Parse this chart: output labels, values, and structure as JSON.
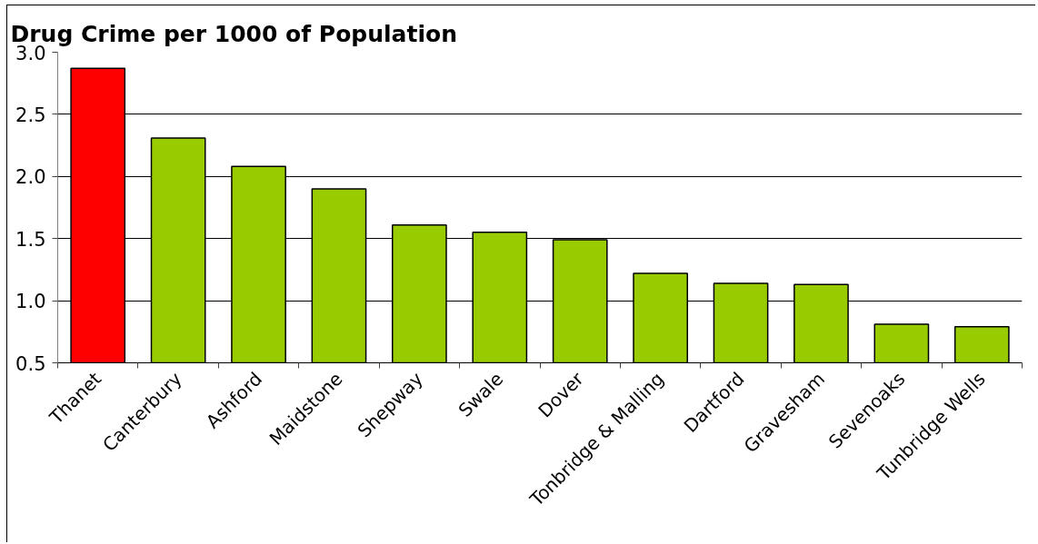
{
  "chart_data": {
    "type": "bar",
    "title": "Drug Crime per 1000 of Population",
    "categories": [
      "Thanet",
      "Canterbury",
      "Ashford",
      "Maidstone",
      "Shepway",
      "Swale",
      "Dover",
      "Tonbridge & Malling",
      "Dartford",
      "Gravesham",
      "Sevenoaks",
      "Tunbridge Wells"
    ],
    "values": [
      2.87,
      2.31,
      2.08,
      1.9,
      1.61,
      1.55,
      1.49,
      1.22,
      1.14,
      1.13,
      0.81,
      0.79
    ],
    "colors": [
      "#ff0000",
      "#99cc00",
      "#99cc00",
      "#99cc00",
      "#99cc00",
      "#99cc00",
      "#99cc00",
      "#99cc00",
      "#99cc00",
      "#99cc00",
      "#99cc00",
      "#99cc00"
    ],
    "ylim": [
      0.5,
      3.0
    ],
    "yticks": [
      0.5,
      {
        "value": 1,
        "label": "1.0"
      },
      1.5,
      {
        "value": 2,
        "label": "2.0"
      },
      2.5,
      {
        "value": 3,
        "label": "3.0"
      }
    ],
    "grid": "y"
  }
}
